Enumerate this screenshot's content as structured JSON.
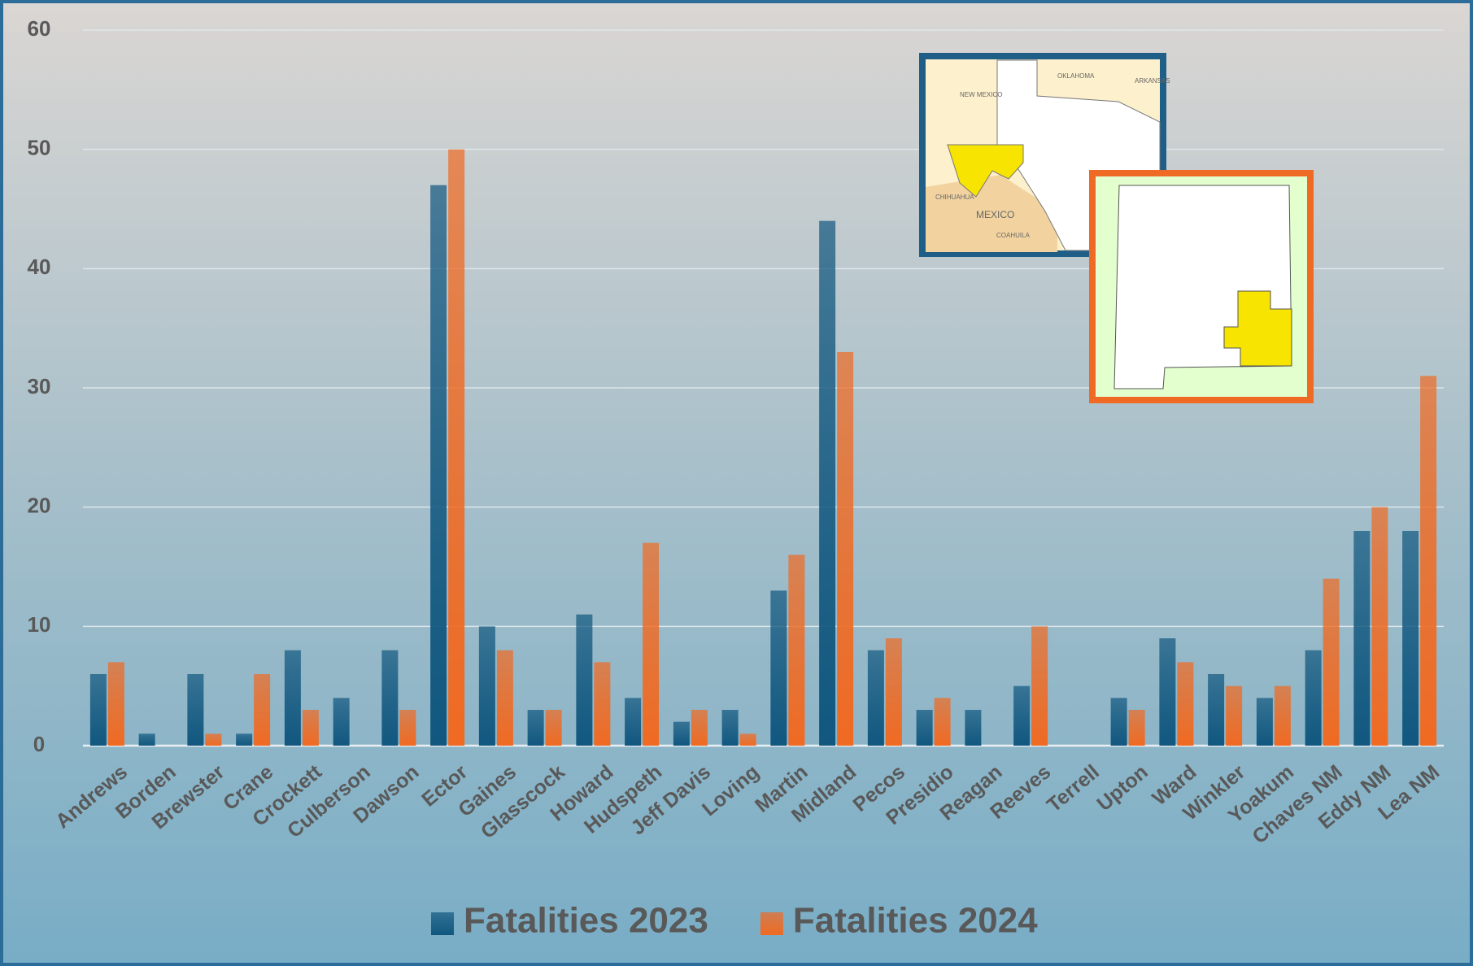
{
  "chart_data": {
    "type": "bar",
    "categories": [
      "Andrews",
      "Borden",
      "Brewster",
      "Crane",
      "Crockett",
      "Culberson",
      "Dawson",
      "Ector",
      "Gaines",
      "Glasscock",
      "Howard",
      "Hudspeth",
      "Jeff Davis",
      "Loving",
      "Martin",
      "Midland",
      "Pecos",
      "Presidio",
      "Reagan",
      "Reeves",
      "Terrell",
      "Upton",
      "Ward",
      "Winkler",
      "Yoakum",
      "Chaves NM",
      "Eddy NM",
      "Lea NM"
    ],
    "series": [
      {
        "name": "Fatalities 2023",
        "color": "#11577f",
        "values": [
          6,
          1,
          6,
          1,
          8,
          4,
          8,
          47,
          10,
          3,
          11,
          4,
          2,
          3,
          13,
          44,
          8,
          3,
          3,
          5,
          0,
          4,
          9,
          6,
          4,
          8,
          18,
          18
        ]
      },
      {
        "name": "Fatalities 2024",
        "color": "#f06a22",
        "values": [
          7,
          0,
          1,
          6,
          3,
          0,
          3,
          50,
          8,
          3,
          7,
          17,
          3,
          1,
          16,
          33,
          9,
          4,
          0,
          10,
          0,
          3,
          7,
          5,
          5,
          14,
          20,
          31
        ]
      }
    ],
    "ylim": [
      0,
      60
    ],
    "yticks": [
      0,
      10,
      20,
      30,
      40,
      50,
      60
    ],
    "grid": true,
    "legend": "bottom",
    "annotations": [
      "NEW MEXICO",
      "OKLAHOMA",
      "ARKANSAS",
      "CHIHUAHUA",
      "MEXICO",
      "COAHUILA"
    ]
  }
}
